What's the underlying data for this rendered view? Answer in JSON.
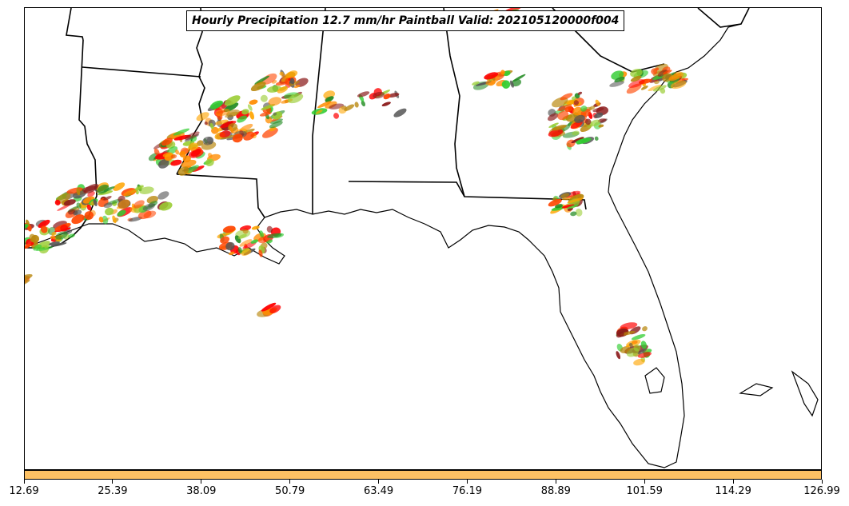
{
  "title": "Hourly Precipitation 12.7 mm/hr Paintball Valid: 202105120000f004",
  "colors": {
    "colorbar": "#FDC164",
    "coastline": "#000000",
    "member_colors": [
      "#FF8C00",
      "#FF0000",
      "#FFA500",
      "#8B1A1A",
      "#228B22",
      "#32CD32",
      "#9ACD32",
      "#B8860B",
      "#555555",
      "#FF4500"
    ]
  },
  "colorbar": {
    "tick_labels": [
      "12.69",
      "25.39",
      "38.09",
      "50.79",
      "63.49",
      "76.19",
      "88.89",
      "101.59",
      "114.29",
      "126.99"
    ]
  }
}
